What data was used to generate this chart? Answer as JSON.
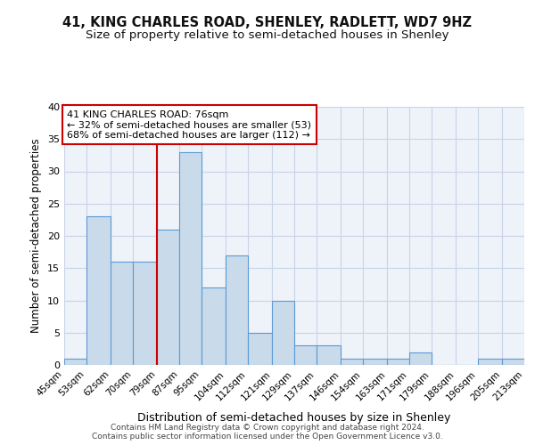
{
  "title": "41, KING CHARLES ROAD, SHENLEY, RADLETT, WD7 9HZ",
  "subtitle": "Size of property relative to semi-detached houses in Shenley",
  "xlabel": "Distribution of semi-detached houses by size in Shenley",
  "ylabel": "Number of semi-detached properties",
  "bin_edges": [
    45,
    53,
    62,
    70,
    79,
    87,
    95,
    104,
    112,
    121,
    129,
    137,
    146,
    154,
    163,
    171,
    179,
    188,
    196,
    205,
    213
  ],
  "bar_heights": [
    1,
    23,
    16,
    16,
    21,
    33,
    12,
    17,
    5,
    10,
    3,
    3,
    1,
    1,
    1,
    2,
    0,
    0,
    1,
    1
  ],
  "bar_color": "#c9daea",
  "bar_edge_color": "#5b9bd5",
  "red_line_x": 79,
  "annotation_text1": "41 KING CHARLES ROAD: 76sqm",
  "annotation_text2": "← 32% of semi-detached houses are smaller (53)",
  "annotation_text3": "68% of semi-detached houses are larger (112) →",
  "annotation_box_color": "#ffffff",
  "annotation_box_edge": "#cc0000",
  "ylim": [
    0,
    40
  ],
  "yticks": [
    0,
    5,
    10,
    15,
    20,
    25,
    30,
    35,
    40
  ],
  "bg_color": "#eef2f9",
  "grid_color": "#c8d4e8",
  "footer_line1": "Contains HM Land Registry data © Crown copyright and database right 2024.",
  "footer_line2": "Contains public sector information licensed under the Open Government Licence v3.0.",
  "title_fontsize": 10.5,
  "subtitle_fontsize": 9.5,
  "ylabel_fontsize": 8.5,
  "xlabel_fontsize": 9
}
